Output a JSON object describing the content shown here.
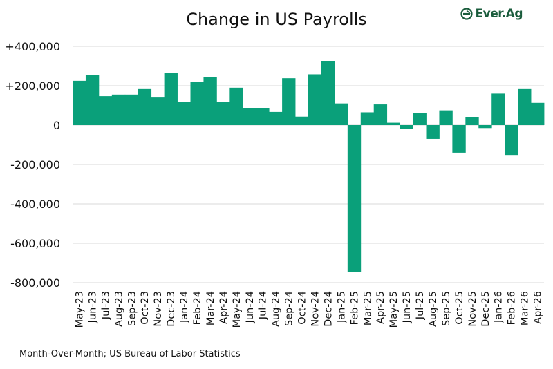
{
  "chart_data": {
    "type": "bar",
    "title": "Change in US Payrolls",
    "xlabel": "",
    "ylabel": "",
    "categories": [
      "May-23",
      "Jun-23",
      "Jul-23",
      "Aug-23",
      "Sep-23",
      "Oct-23",
      "Nov-23",
      "Dec-23",
      "Jan-24",
      "Feb-24",
      "Mar-24",
      "Apr-24",
      "May-24",
      "Jun-24",
      "Jul-24",
      "Aug-24",
      "Sep-24",
      "Oct-24",
      "Nov-24",
      "Dec-24",
      "Jan-25",
      "Feb-25",
      "Mar-25",
      "Apr-25",
      "May-25",
      "Jun-25",
      "Jul-25",
      "Aug-25",
      "Sep-25",
      "Oct-25",
      "Nov-25",
      "Dec-25",
      "Jan-26",
      "Feb-26",
      "Mar-26",
      "Apr-26"
    ],
    "values": [
      225000,
      255000,
      147000,
      155000,
      155000,
      183000,
      140000,
      265000,
      117000,
      220000,
      244000,
      116000,
      190000,
      86000,
      86000,
      67000,
      238000,
      43000,
      258000,
      323000,
      110000,
      -745000,
      65000,
      105000,
      12000,
      -18000,
      63000,
      -70000,
      75000,
      -140000,
      40000,
      -15000,
      160000,
      -155000,
      183000,
      113000
    ],
    "ylim": [
      -800000,
      400000
    ],
    "yticks": [
      400000,
      200000,
      0,
      -200000,
      -400000,
      -600000,
      -800000
    ],
    "ytick_labels": [
      "+400,000",
      "+200,000",
      "0",
      "-200,000",
      "-400,000",
      "-600,000",
      "-800,000"
    ],
    "grid": true,
    "bar_color": "#0aa07a",
    "grid_color": "#d9d9d9"
  },
  "logo": {
    "text": "Ever.Ag",
    "color": "#1a5c3c"
  },
  "source": "Month-Over-Month; US Bureau of Labor Statistics"
}
